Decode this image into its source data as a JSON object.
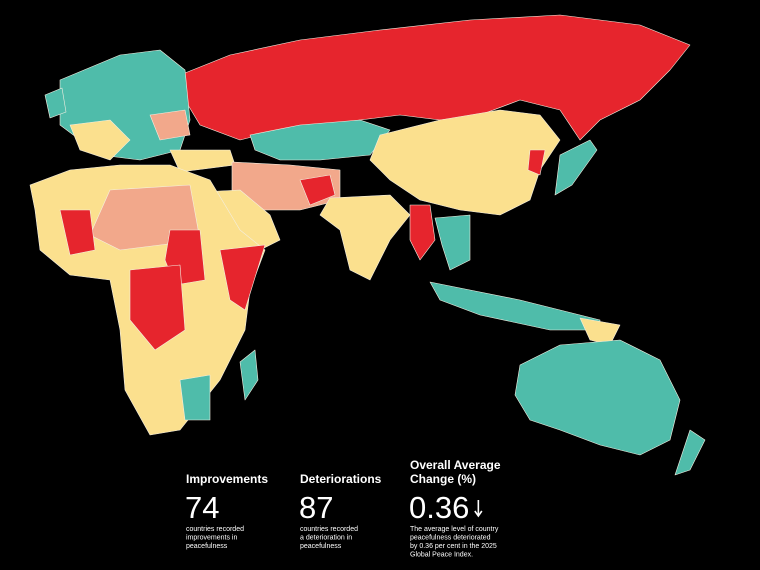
{
  "stats": [
    {
      "title": [
        "Improvements"
      ],
      "value": "74",
      "description": [
        "countries recorded",
        "improvements in",
        "peacefulness"
      ]
    },
    {
      "title": [
        "Deteriorations"
      ],
      "value": "87",
      "description": [
        "countries recorded",
        "a deterioration in",
        "peacefulness"
      ]
    },
    {
      "title": [
        "Overall Average",
        "Change (%)"
      ],
      "value": "0.36",
      "description": [
        "The average level of country",
        "peacefulness deteriorated",
        "by 0.36 per cent in the 2025",
        "Global Peace Index."
      ]
    }
  ]
}
